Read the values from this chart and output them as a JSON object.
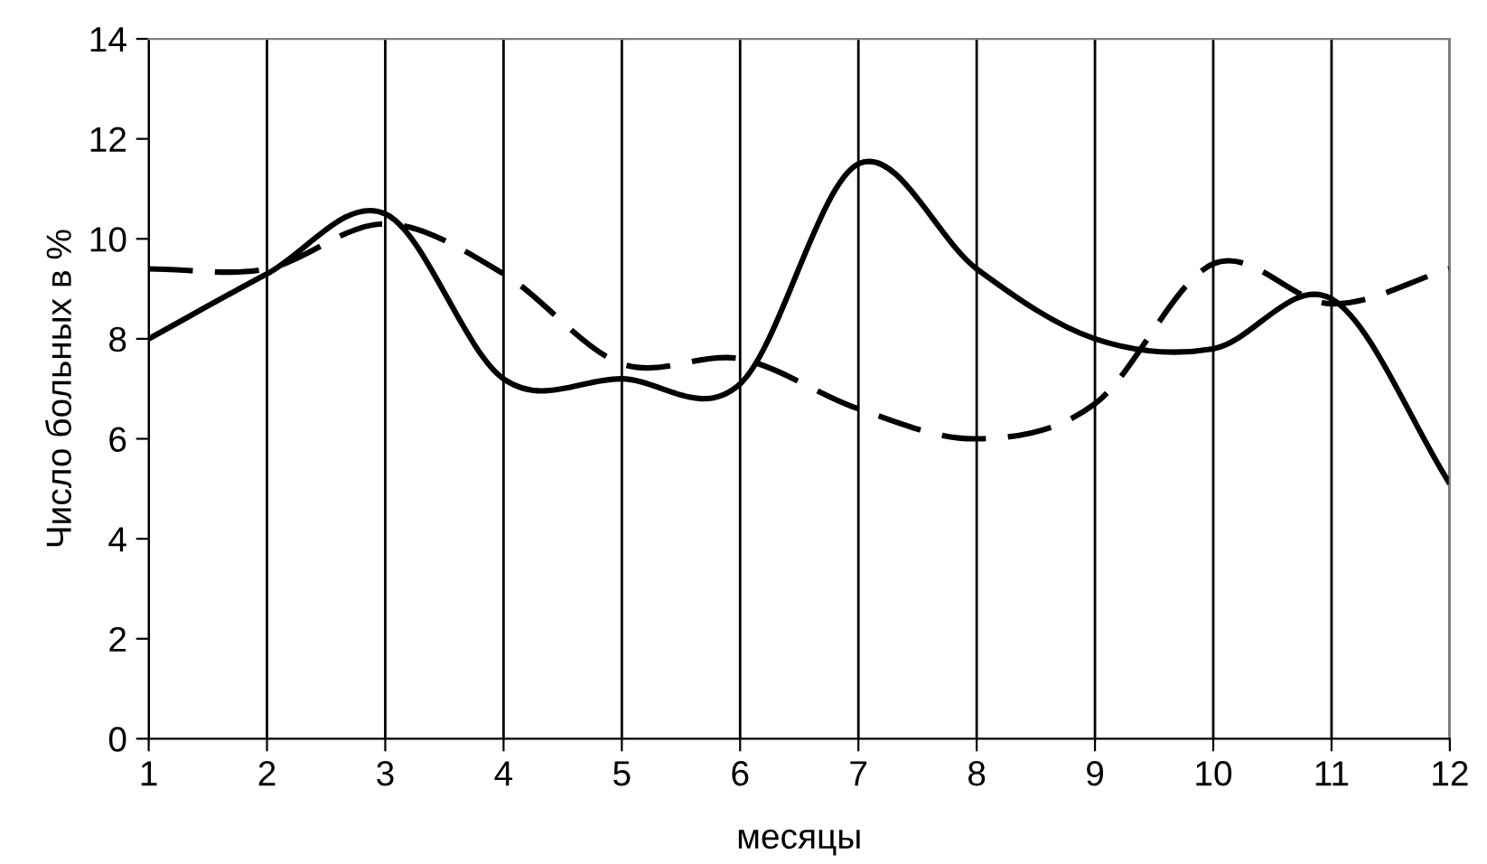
{
  "chart_data": {
    "type": "line",
    "xlabel": "месяцы",
    "ylabel": "Число больных в %",
    "x": [
      1,
      2,
      3,
      4,
      5,
      6,
      7,
      8,
      9,
      10,
      11,
      12
    ],
    "xlim": [
      1,
      12
    ],
    "xticks": [
      1,
      2,
      3,
      4,
      5,
      6,
      7,
      8,
      9,
      10,
      11,
      12
    ],
    "ylim": [
      0,
      14
    ],
    "yticks": [
      0,
      2,
      4,
      6,
      8,
      10,
      12,
      14
    ],
    "grid": "x",
    "marker": "none",
    "series": [
      {
        "color": "#000000",
        "line_style": "solid",
        "values": [
          8.0,
          9.3,
          10.5,
          7.2,
          7.2,
          7.1,
          11.5,
          9.4,
          8.0,
          7.8,
          8.8,
          5.1
        ]
      },
      {
        "color": "#000000",
        "line_style": "dashed",
        "values": [
          9.4,
          9.4,
          10.3,
          9.3,
          7.5,
          7.6,
          6.6,
          6.0,
          6.7,
          9.5,
          8.7,
          9.4
        ]
      }
    ]
  }
}
